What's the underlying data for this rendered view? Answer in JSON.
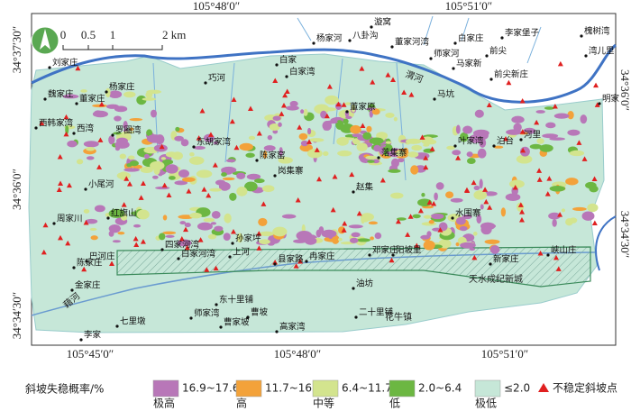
{
  "map": {
    "coords_top": [
      "105°48′0″",
      "105°51′0″"
    ],
    "coords_bottom": [
      "105°45′0″",
      "105°48′0″",
      "105°51′0″"
    ],
    "coords_left": [
      "34°37′30″",
      "34°36′0″",
      "34°34′30″"
    ],
    "coords_right": [
      "34°36′0″",
      "34°34′30″"
    ],
    "scale": [
      "0",
      "0.5",
      "1",
      "2 km"
    ],
    "rivers": [
      "渭河",
      "藉河"
    ],
    "new_town": "天水成纪新城",
    "town": "花牛镇",
    "places": [
      "杨家河",
      "八卦沟",
      "漩窝",
      "董家河湾",
      "白家庄",
      "李家堡子",
      "槐树湾",
      "湾儿里",
      "师家河",
      "马家新",
      "前尖",
      "前尖新庄",
      "刘家庄",
      "魏家庄",
      "董家庄",
      "杨家庄",
      "巧河",
      "白家",
      "白家湾",
      "董家原",
      "马坑",
      "明家",
      "西韩家湾",
      "西湾",
      "罗圈湾",
      "东胡家湾",
      "陈家窑",
      "岗集寨",
      "落集寨",
      "叶家湾",
      "泊台",
      "河里",
      "小尾河",
      "赵集",
      "周家川",
      "红旗山",
      "水围寨",
      "四家河湾",
      "孙家坪",
      "上河",
      "白家河湾",
      "巴河庄",
      "陈家庄",
      "县家路",
      "冉家庄",
      "邓家庄",
      "阳坡里",
      "新家庄",
      "峡山庄",
      "金家庄",
      "油坊",
      "东十里铺",
      "七里墩",
      "师家湾",
      "曹坡",
      "曹家坡",
      "二十里铺",
      "高家湾",
      "李家"
    ]
  },
  "legend": {
    "title": "斜坡失稳概率/%",
    "items": [
      {
        "range": "16.9~17.6",
        "level": "极高",
        "color": "#b877b8"
      },
      {
        "range": "11.7~16.9",
        "level": "高",
        "color": "#f3a23a"
      },
      {
        "range": "6.4~11.7",
        "level": "中等",
        "color": "#d3e48e"
      },
      {
        "range": "2.0~6.4",
        "level": "低",
        "color": "#6cb742"
      },
      {
        "range": "≤2.0",
        "level": "极低",
        "color": "#c6e7d8"
      }
    ],
    "point": {
      "label": "不稳定斜坡点",
      "color": "#e02020"
    }
  }
}
